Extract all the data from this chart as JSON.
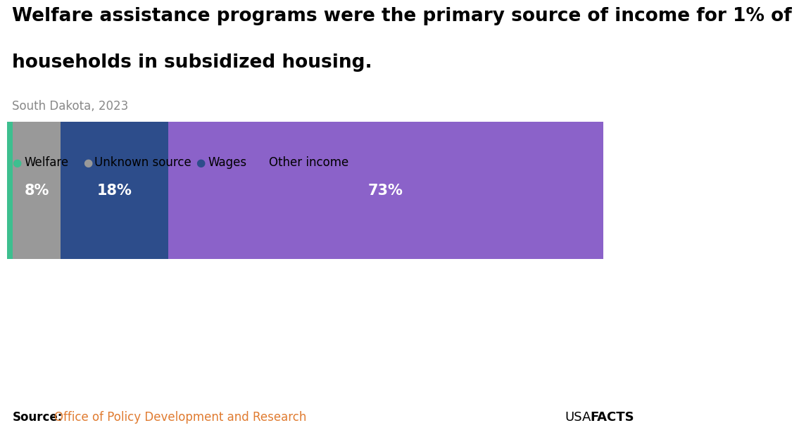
{
  "title_line1": "Welfare assistance programs were the primary source of income for 1% of",
  "title_line2": "households in subsidized housing.",
  "subtitle": "South Dakota, 2023",
  "categories": [
    "Welfare",
    "Unknown source",
    "Wages",
    "Other income"
  ],
  "values": [
    1,
    8,
    18,
    73
  ],
  "colors": [
    "#3dbf8f",
    "#999999",
    "#2d4d8b",
    "#8b62c9"
  ],
  "source_label": "Source:",
  "source_text": "Office of Policy Development and Research",
  "background_color": "#ffffff",
  "show_labels": [
    false,
    true,
    true,
    true
  ],
  "title_fontsize": 19,
  "subtitle_fontsize": 12,
  "label_fontsize": 15,
  "legend_fontsize": 12,
  "source_fontsize": 12
}
